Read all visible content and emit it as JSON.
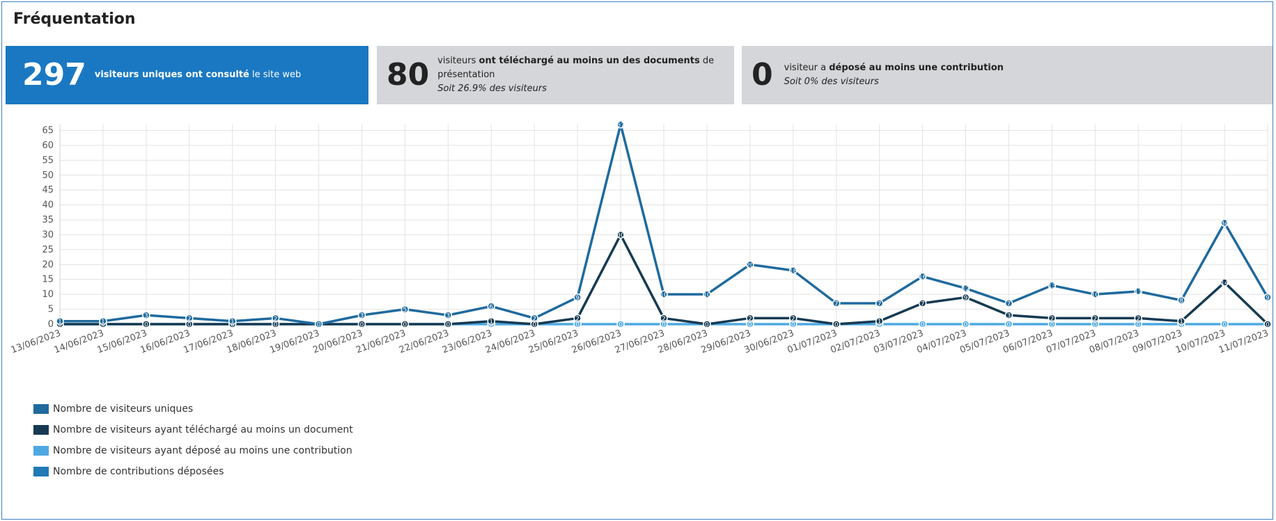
{
  "title": "Fréquentation",
  "cards": [
    {
      "value": "297",
      "bold1": "visiteurs uniques ont consulté",
      "text1": " le site web"
    },
    {
      "value": "80",
      "text1": "visiteurs ",
      "bold1": "ont téléchargé au moins un des documents",
      "text2": " de présentation",
      "sub": "Soit 26.9% des visiteurs"
    },
    {
      "value": "0",
      "text1": "visiteur a ",
      "bold1": "déposé au moins une contribution",
      "sub": "Soit 0% des visiteurs"
    }
  ],
  "legend": [
    {
      "label": "Nombre de visiteurs uniques",
      "color": "#1f6a9e"
    },
    {
      "label": "Nombre de visiteurs ayant téléchargé au moins un document",
      "color": "#163a52"
    },
    {
      "label": "Nombre de visiteurs ayant déposé au moins une contribution",
      "color": "#4ea9e2"
    },
    {
      "label": "Nombre de contributions déposées",
      "color": "#1f7ab8"
    }
  ],
  "chart_data": {
    "type": "line",
    "x": [
      "13/06/2023",
      "14/06/2023",
      "15/06/2023",
      "16/06/2023",
      "17/06/2023",
      "18/06/2023",
      "19/06/2023",
      "20/06/2023",
      "21/06/2023",
      "22/06/2023",
      "23/06/2023",
      "24/06/2023",
      "25/06/2023",
      "26/06/2023",
      "27/06/2023",
      "28/06/2023",
      "29/06/2023",
      "30/06/2023",
      "01/07/2023",
      "02/07/2023",
      "03/07/2023",
      "04/07/2023",
      "05/07/2023",
      "06/07/2023",
      "07/07/2023",
      "08/07/2023",
      "09/07/2023",
      "10/07/2023",
      "11/07/2023"
    ],
    "yticks": [
      0,
      5,
      10,
      15,
      20,
      25,
      30,
      35,
      40,
      45,
      50,
      55,
      60,
      65
    ],
    "ylim": [
      0,
      67
    ],
    "grid": true,
    "legend_position": "bottom-left",
    "series": [
      {
        "name": "Nombre de visiteurs uniques",
        "color": "#1f6a9e",
        "values": [
          1,
          1,
          3,
          2,
          1,
          2,
          0,
          3,
          5,
          3,
          6,
          2,
          9,
          67,
          10,
          10,
          20,
          18,
          7,
          7,
          16,
          12,
          7,
          13,
          10,
          11,
          8,
          34,
          9
        ]
      },
      {
        "name": "Nombre de visiteurs ayant téléchargé au moins un document",
        "color": "#163a52",
        "values": [
          0,
          0,
          0,
          0,
          0,
          0,
          0,
          0,
          0,
          0,
          1,
          0,
          2,
          30,
          2,
          0,
          2,
          2,
          0,
          1,
          7,
          9,
          3,
          2,
          2,
          2,
          1,
          14,
          0
        ]
      },
      {
        "name": "Nombre de visiteurs ayant déposé au moins une contribution",
        "color": "#4ea9e2",
        "values": [
          0,
          0,
          0,
          0,
          0,
          0,
          0,
          0,
          0,
          0,
          0,
          0,
          0,
          0,
          0,
          0,
          0,
          0,
          0,
          0,
          0,
          0,
          0,
          0,
          0,
          0,
          0,
          0,
          0
        ]
      }
    ]
  }
}
